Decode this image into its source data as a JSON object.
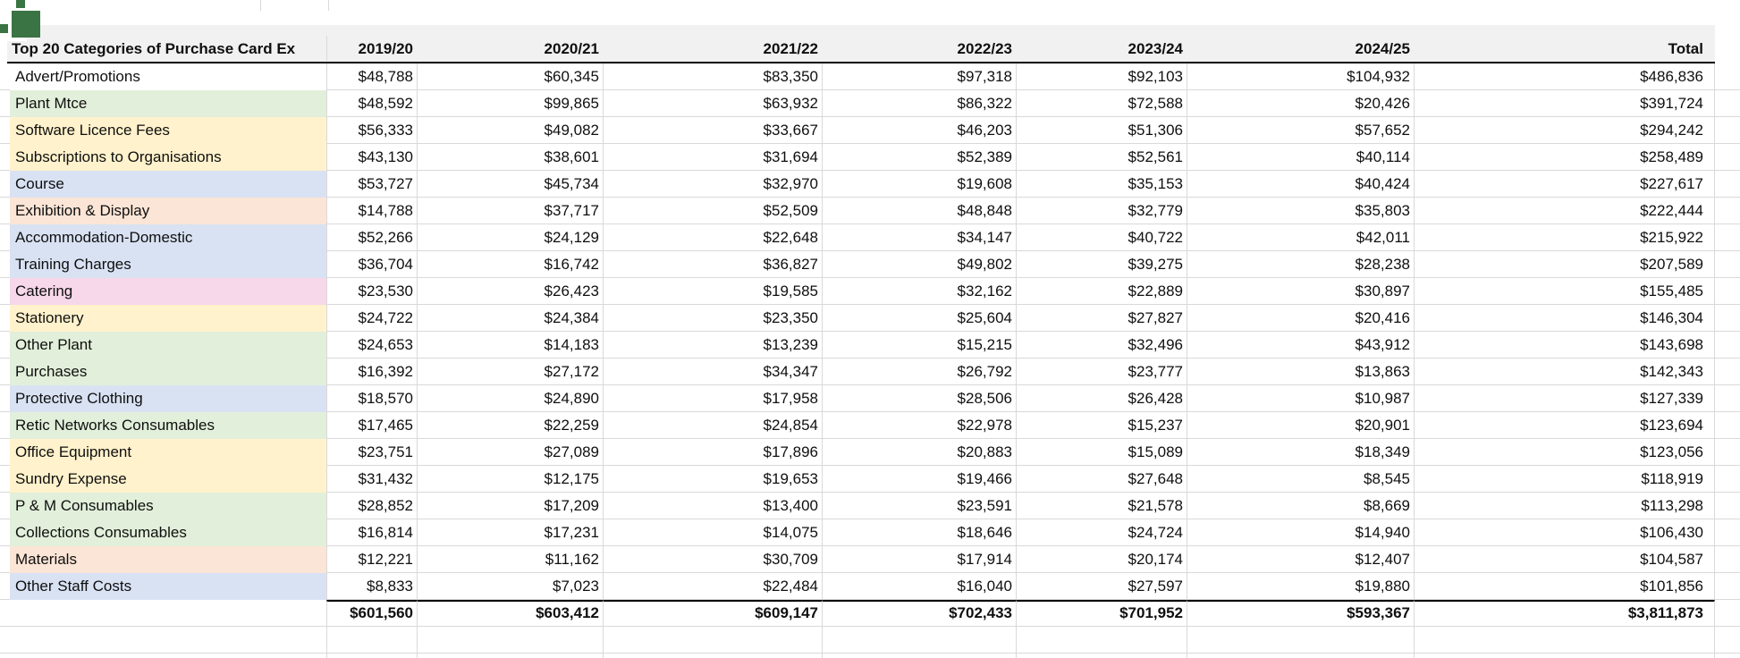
{
  "sheet": {
    "title": "Top 20 Categories of Purchase Card Ex",
    "columns": [
      "2019/20",
      "2020/21",
      "2021/22",
      "2022/23",
      "2023/24",
      "2024/25",
      "Total"
    ],
    "rows": [
      {
        "label": "Advert/Promotions",
        "fill": "white",
        "values": [
          "$48,788",
          "$60,345",
          "$83,350",
          "$97,318",
          "$92,103",
          "$104,932",
          "$486,836"
        ]
      },
      {
        "label": "Plant Mtce",
        "fill": "green",
        "values": [
          "$48,592",
          "$99,865",
          "$63,932",
          "$86,322",
          "$72,588",
          "$20,426",
          "$391,724"
        ]
      },
      {
        "label": "Software Licence Fees",
        "fill": "yellow",
        "values": [
          "$56,333",
          "$49,082",
          "$33,667",
          "$46,203",
          "$51,306",
          "$57,652",
          "$294,242"
        ]
      },
      {
        "label": "Subscriptions to Organisations",
        "fill": "yellow",
        "values": [
          "$43,130",
          "$38,601",
          "$31,694",
          "$52,389",
          "$52,561",
          "$40,114",
          "$258,489"
        ]
      },
      {
        "label": "Course",
        "fill": "blue",
        "values": [
          "$53,727",
          "$45,734",
          "$32,970",
          "$19,608",
          "$35,153",
          "$40,424",
          "$227,617"
        ]
      },
      {
        "label": "Exhibition & Display",
        "fill": "peach",
        "values": [
          "$14,788",
          "$37,717",
          "$52,509",
          "$48,848",
          "$32,779",
          "$35,803",
          "$222,444"
        ]
      },
      {
        "label": "Accommodation-Domestic",
        "fill": "blue",
        "values": [
          "$52,266",
          "$24,129",
          "$22,648",
          "$34,147",
          "$40,722",
          "$42,011",
          "$215,922"
        ]
      },
      {
        "label": "Training Charges",
        "fill": "blue",
        "values": [
          "$36,704",
          "$16,742",
          "$36,827",
          "$49,802",
          "$39,275",
          "$28,238",
          "$207,589"
        ]
      },
      {
        "label": "Catering",
        "fill": "pink",
        "values": [
          "$23,530",
          "$26,423",
          "$19,585",
          "$32,162",
          "$22,889",
          "$30,897",
          "$155,485"
        ]
      },
      {
        "label": "Stationery",
        "fill": "yellow",
        "values": [
          "$24,722",
          "$24,384",
          "$23,350",
          "$25,604",
          "$27,827",
          "$20,416",
          "$146,304"
        ]
      },
      {
        "label": "Other Plant",
        "fill": "green",
        "values": [
          "$24,653",
          "$14,183",
          "$13,239",
          "$15,215",
          "$32,496",
          "$43,912",
          "$143,698"
        ]
      },
      {
        "label": "Purchases",
        "fill": "green",
        "values": [
          "$16,392",
          "$27,172",
          "$34,347",
          "$26,792",
          "$23,777",
          "$13,863",
          "$142,343"
        ]
      },
      {
        "label": "Protective Clothing",
        "fill": "blue",
        "values": [
          "$18,570",
          "$24,890",
          "$17,958",
          "$28,506",
          "$26,428",
          "$10,987",
          "$127,339"
        ]
      },
      {
        "label": "Retic Networks Consumables",
        "fill": "green",
        "values": [
          "$17,465",
          "$22,259",
          "$24,854",
          "$22,978",
          "$15,237",
          "$20,901",
          "$123,694"
        ]
      },
      {
        "label": "Office Equipment",
        "fill": "yellow",
        "values": [
          "$23,751",
          "$27,089",
          "$17,896",
          "$20,883",
          "$15,089",
          "$18,349",
          "$123,056"
        ]
      },
      {
        "label": "Sundry Expense",
        "fill": "yellow",
        "values": [
          "$31,432",
          "$12,175",
          "$19,653",
          "$19,466",
          "$27,648",
          "$8,545",
          "$118,919"
        ]
      },
      {
        "label": "P & M Consumables",
        "fill": "green",
        "values": [
          "$28,852",
          "$17,209",
          "$13,400",
          "$23,591",
          "$21,578",
          "$8,669",
          "$113,298"
        ]
      },
      {
        "label": "Collections Consumables",
        "fill": "green",
        "values": [
          "$16,814",
          "$17,231",
          "$14,075",
          "$18,646",
          "$24,724",
          "$14,940",
          "$106,430"
        ]
      },
      {
        "label": "Materials",
        "fill": "peach",
        "values": [
          "$12,221",
          "$11,162",
          "$30,709",
          "$17,914",
          "$20,174",
          "$12,407",
          "$104,587"
        ]
      },
      {
        "label": "Other Staff Costs",
        "fill": "blue",
        "values": [
          "$8,833",
          "$7,023",
          "$22,484",
          "$16,040",
          "$27,597",
          "$19,880",
          "$101,856"
        ]
      }
    ],
    "total_row": {
      "label": "",
      "values": [
        "$601,560",
        "$603,412",
        "$609,147",
        "$702,433",
        "$701,952",
        "$593,367",
        "$3,811,873"
      ]
    },
    "colors": {
      "green": "#E2EFDA",
      "yellow": "#FFF2CC",
      "blue": "#D9E2F3",
      "peach": "#FBE5D6",
      "pink": "#F7D7EA",
      "white": "#FFFFFF",
      "header_bg": "#F1F1F1",
      "gridline": "#D9D9D9",
      "border_black": "#000000",
      "icon_green": "#3A7444"
    }
  }
}
